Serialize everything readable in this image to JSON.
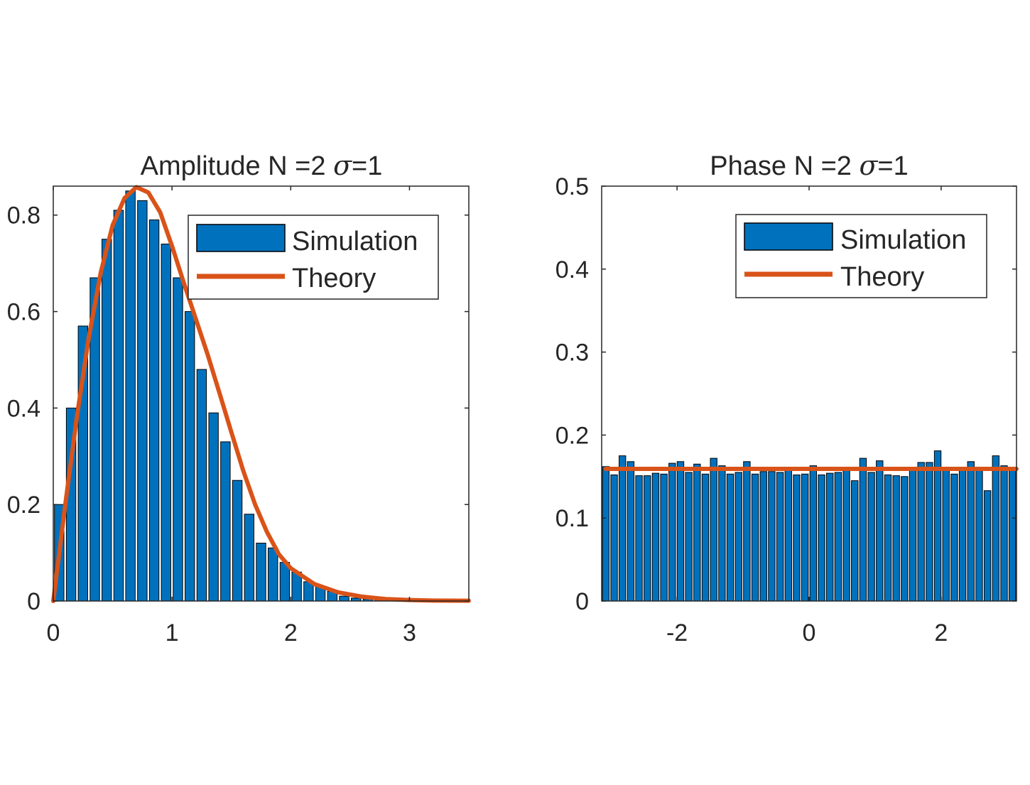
{
  "colors": {
    "bar": "#0072BD",
    "bar_edge": "#000000",
    "line": "#D95319",
    "axis": "#262626"
  },
  "chart_data": [
    {
      "type": "bar",
      "title_prefix": "Amplitude N =2 ",
      "title_symbol": "σ",
      "title_suffix": "=1",
      "xlim": [
        0,
        3.5
      ],
      "ylim": [
        0,
        0.86
      ],
      "xticks": [
        0,
        1,
        2,
        3
      ],
      "xtick_labels": [
        "0",
        "1",
        "2",
        "3"
      ],
      "yticks": [
        0,
        0.2,
        0.4,
        0.6,
        0.8
      ],
      "ytick_labels": [
        "0",
        "0.2",
        "0.4",
        "0.6",
        "0.8"
      ],
      "grid": false,
      "legend_position": "top-right",
      "series": [
        {
          "name": "Simulation",
          "kind": "bar",
          "bin_width": 0.1,
          "x": [
            0.05,
            0.15,
            0.25,
            0.35,
            0.45,
            0.55,
            0.65,
            0.75,
            0.85,
            0.95,
            1.05,
            1.15,
            1.25,
            1.35,
            1.45,
            1.55,
            1.65,
            1.75,
            1.85,
            1.95,
            2.05,
            2.15,
            2.25,
            2.35,
            2.45,
            2.55,
            2.65,
            2.75,
            2.85,
            2.95,
            3.05,
            3.15,
            3.25,
            3.35
          ],
          "values": [
            0.2,
            0.4,
            0.57,
            0.67,
            0.75,
            0.81,
            0.85,
            0.83,
            0.79,
            0.74,
            0.67,
            0.6,
            0.48,
            0.39,
            0.33,
            0.25,
            0.18,
            0.12,
            0.11,
            0.08,
            0.06,
            0.04,
            0.03,
            0.02,
            0.01,
            0.006,
            0.004,
            0.003,
            0.002,
            0.001,
            0.001,
            0.001,
            0.001,
            0.001
          ]
        },
        {
          "name": "Theory",
          "kind": "line",
          "x": [
            0,
            0.1,
            0.2,
            0.3,
            0.4,
            0.5,
            0.6,
            0.7,
            0.8,
            0.9,
            1.0,
            1.1,
            1.2,
            1.3,
            1.4,
            1.5,
            1.6,
            1.7,
            1.8,
            1.9,
            2.0,
            2.2,
            2.4,
            2.6,
            2.8,
            3.0,
            3.2,
            3.5
          ],
          "values": [
            0,
            0.198,
            0.384,
            0.548,
            0.681,
            0.779,
            0.835,
            0.858,
            0.847,
            0.806,
            0.736,
            0.659,
            0.585,
            0.511,
            0.431,
            0.35,
            0.27,
            0.2,
            0.143,
            0.097,
            0.068,
            0.035,
            0.018,
            0.009,
            0.004,
            0.002,
            0.001,
            0.0005
          ]
        }
      ]
    },
    {
      "type": "bar",
      "title_prefix": "Phase N =2 ",
      "title_symbol": "σ",
      "title_suffix": "=1",
      "xlim": [
        -3.1416,
        3.1416
      ],
      "ylim": [
        0,
        0.5
      ],
      "xticks": [
        -2,
        0,
        2
      ],
      "xtick_labels": [
        "-2",
        "0",
        "2"
      ],
      "yticks": [
        0,
        0.1,
        0.2,
        0.3,
        0.4,
        0.5
      ],
      "ytick_labels": [
        "0",
        "0.1",
        "0.2",
        "0.3",
        "0.4",
        "0.5"
      ],
      "grid": false,
      "legend_position": "top-right",
      "series": [
        {
          "name": "Simulation",
          "kind": "bar",
          "bin_width": 0.1257,
          "x": [
            -3.0788,
            -2.9531,
            -2.8274,
            -2.7018,
            -2.5761,
            -2.4504,
            -2.3248,
            -2.1991,
            -2.0735,
            -1.9478,
            -1.8221,
            -1.6965,
            -1.5708,
            -1.4451,
            -1.3195,
            -1.1938,
            -1.0681,
            -0.9425,
            -0.8168,
            -0.6912,
            -0.5655,
            -0.4398,
            -0.3142,
            -0.1885,
            -0.0628,
            0.0628,
            0.1885,
            0.3142,
            0.4398,
            0.5655,
            0.6912,
            0.8168,
            0.9425,
            1.0681,
            1.1938,
            1.3195,
            1.4451,
            1.5708,
            1.6965,
            1.8221,
            1.9478,
            2.0735,
            2.1991,
            2.3248,
            2.4504,
            2.5761,
            2.7018,
            2.8274,
            2.9531,
            3.0788
          ],
          "values": [
            0.162,
            0.152,
            0.175,
            0.168,
            0.151,
            0.151,
            0.154,
            0.153,
            0.166,
            0.168,
            0.155,
            0.165,
            0.153,
            0.172,
            0.163,
            0.153,
            0.155,
            0.168,
            0.153,
            0.156,
            0.156,
            0.155,
            0.159,
            0.152,
            0.153,
            0.163,
            0.152,
            0.154,
            0.155,
            0.16,
            0.145,
            0.172,
            0.155,
            0.169,
            0.152,
            0.151,
            0.15,
            0.161,
            0.167,
            0.167,
            0.181,
            0.158,
            0.153,
            0.159,
            0.168,
            0.158,
            0.133,
            0.175,
            0.163,
            0.158
          ]
        },
        {
          "name": "Theory",
          "kind": "line",
          "x": [
            -3.0788,
            3.1416
          ],
          "values": [
            0.1592,
            0.1592
          ]
        }
      ]
    }
  ]
}
